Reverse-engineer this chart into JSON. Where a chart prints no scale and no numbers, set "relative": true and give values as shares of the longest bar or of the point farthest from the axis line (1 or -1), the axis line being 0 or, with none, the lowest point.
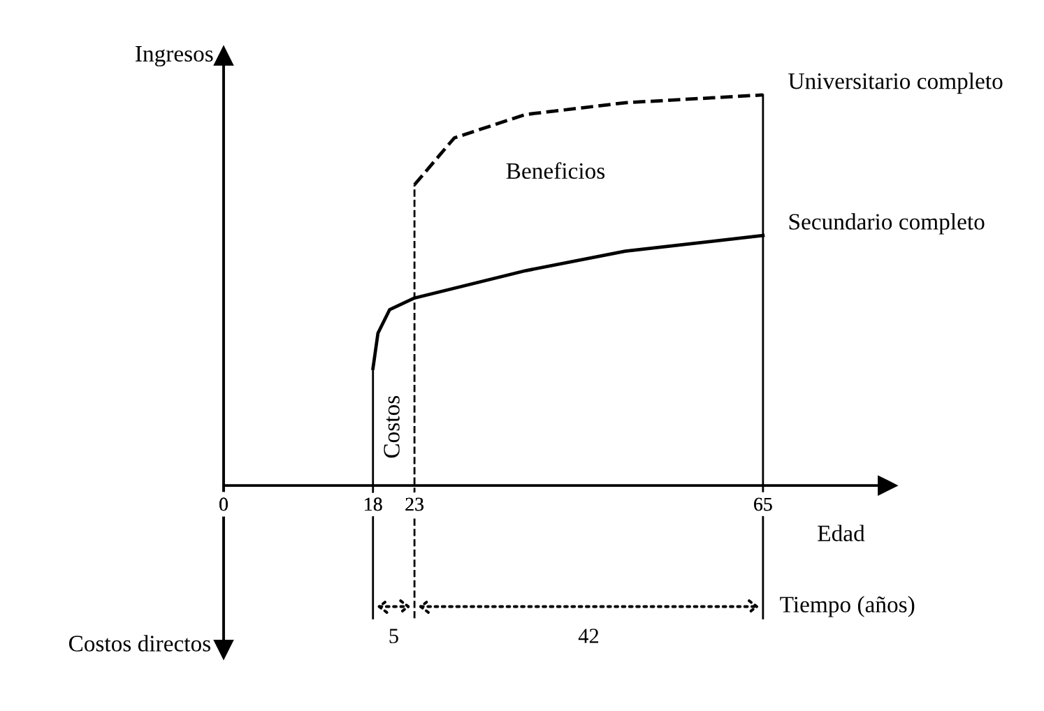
{
  "chart_data": {
    "type": "line",
    "relative": true,
    "xlabel": "Edad",
    "ylabel": "Ingresos",
    "xlim": [
      0,
      80
    ],
    "xticks": [
      0,
      18,
      23,
      65
    ],
    "series": [
      {
        "name": "Universitario completo",
        "color": "#000000",
        "line_style": "dashed",
        "x": [
          23,
          27.8,
          36.4,
          48.4,
          65
        ],
        "values": [
          0.77,
          0.89,
          0.95,
          0.98,
          1.0
        ]
      },
      {
        "name": "Secundario completo",
        "color": "#000000",
        "line_style": "solid",
        "x": [
          18,
          18.6,
          20,
          23,
          36.4,
          48.4,
          65
        ],
        "values": [
          0.3,
          0.39,
          0.45,
          0.48,
          0.55,
          0.6,
          0.64
        ]
      }
    ],
    "ref_lines": [
      {
        "axis": "x",
        "value": 18,
        "line_style": "solid"
      },
      {
        "axis": "x",
        "value": 23,
        "line_style": "dashed"
      },
      {
        "axis": "x",
        "value": 65,
        "line_style": "solid"
      }
    ],
    "annotations": [
      "Beneficios",
      "Costos",
      "Tiempo (años)",
      "Costos directos",
      "5",
      "42"
    ],
    "grid": false,
    "legend": false
  }
}
